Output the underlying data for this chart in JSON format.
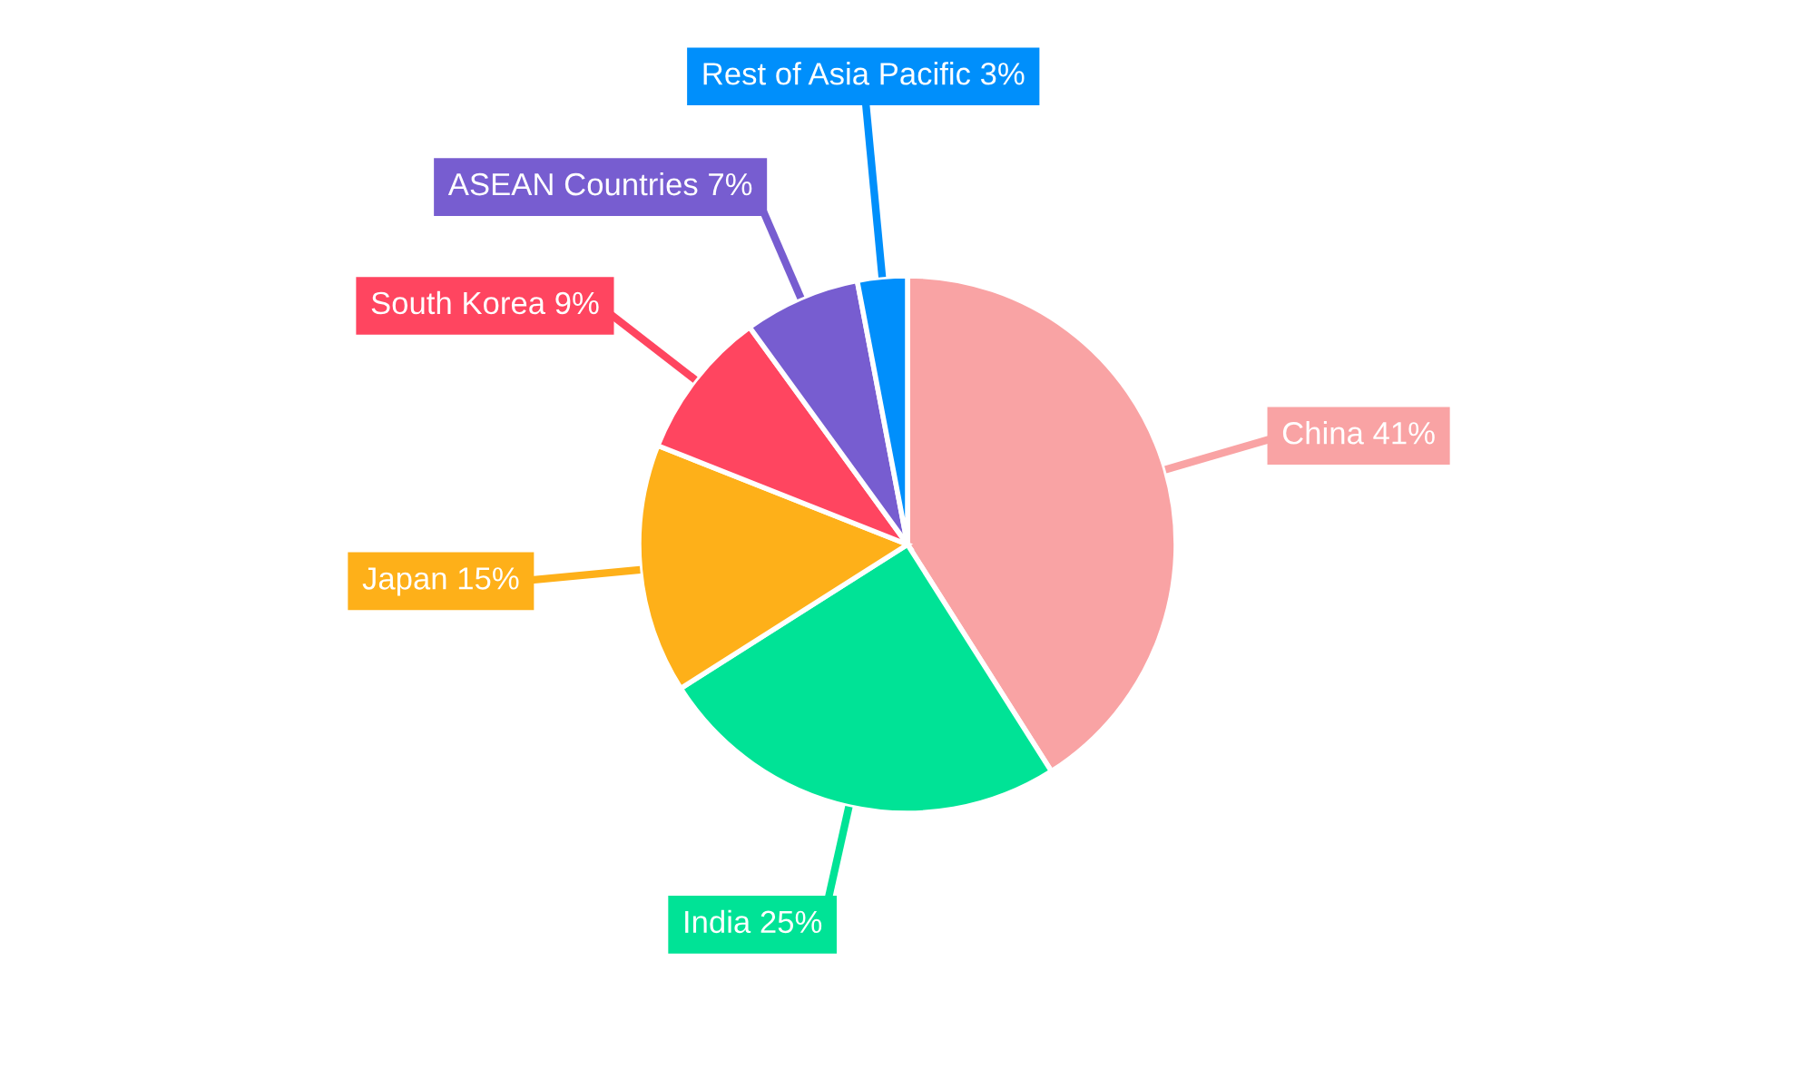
{
  "chart_data": {
    "type": "pie",
    "categories": [
      "China",
      "India",
      "Japan",
      "South Korea",
      "ASEAN Countries",
      "Rest of Asia Pacific"
    ],
    "values": [
      41,
      25,
      15,
      9,
      7,
      3
    ],
    "value_labels": [
      "41%",
      "25%",
      "15%",
      "9%",
      "7%",
      "3%"
    ],
    "colors": [
      "#f9a3a4",
      "#00e396",
      "#feb019",
      "#ff4560",
      "#775dd0",
      "#008ffb"
    ],
    "legend": false
  }
}
